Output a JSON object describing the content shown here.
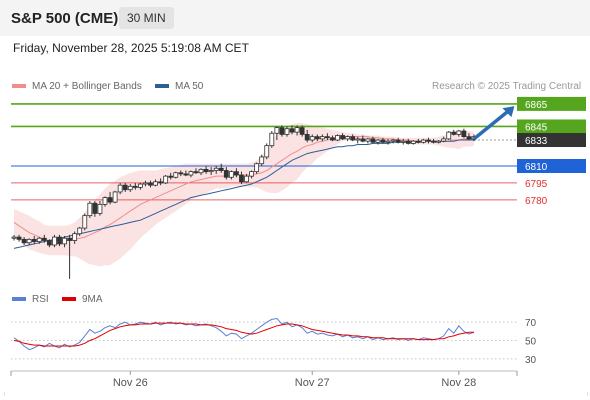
{
  "header": {
    "title": "S&P 500 (CME)",
    "timeframe": "30 MIN",
    "timestamp": "Friday, November 28, 2025 5:19:08 AM CET"
  },
  "legend": {
    "items": [
      {
        "label": "MA 20 + Bollinger Bands",
        "color": "#f08c8c"
      },
      {
        "label": "MA 50",
        "color": "#2c5e98"
      }
    ],
    "credit": "Research © 2025 Trading Central"
  },
  "rsi_legend": {
    "items": [
      {
        "label": "RSI",
        "color": "#5b7fd6"
      },
      {
        "label": "9MA",
        "color": "#e00000"
      }
    ]
  },
  "colors": {
    "resistance": "#55a61e",
    "pivot": "#1f63d6",
    "support": "#e03030",
    "last": "#333333",
    "arrow": "#2b6cb4"
  },
  "chart_data": [
    {
      "type": "line",
      "name": "price",
      "ylim": [
        6709,
        6872
      ],
      "x_ticks": [
        {
          "label": "Nov 26",
          "index": 23
        },
        {
          "label": "Nov 27",
          "index": 59
        },
        {
          "label": "Nov 28",
          "index": 88
        }
      ],
      "levels": [
        {
          "value": 6865,
          "label": "6865",
          "kind": "resistance"
        },
        {
          "value": 6845,
          "label": "6845",
          "kind": "resistance"
        },
        {
          "value": 6833,
          "label": "6833",
          "kind": "last"
        },
        {
          "value": 6810,
          "label": "6810",
          "kind": "pivot"
        },
        {
          "value": 6795,
          "label": "6795",
          "kind": "support"
        },
        {
          "value": 6780,
          "label": "6780",
          "kind": "support"
        }
      ],
      "candles": [
        [
          6746,
          6749,
          6744,
          6747
        ],
        [
          6747,
          6749,
          6743,
          6745
        ],
        [
          6745,
          6747,
          6740,
          6742
        ],
        [
          6742,
          6746,
          6740,
          6745
        ],
        [
          6745,
          6748,
          6741,
          6743
        ],
        [
          6743,
          6747,
          6741,
          6746
        ],
        [
          6746,
          6749,
          6742,
          6744
        ],
        [
          6744,
          6745,
          6738,
          6740
        ],
        [
          6740,
          6749,
          6738,
          6747
        ],
        [
          6747,
          6749,
          6739,
          6741
        ],
        [
          6741,
          6748,
          6738,
          6746
        ],
        [
          6746,
          6749,
          6710,
          6744
        ],
        [
          6744,
          6752,
          6741,
          6750
        ],
        [
          6750,
          6756,
          6748,
          6755
        ],
        [
          6755,
          6768,
          6753,
          6766
        ],
        [
          6766,
          6779,
          6764,
          6777
        ],
        [
          6777,
          6779,
          6765,
          6768
        ],
        [
          6768,
          6779,
          6766,
          6776
        ],
        [
          6776,
          6783,
          6774,
          6782
        ],
        [
          6782,
          6787,
          6776,
          6778
        ],
        [
          6778,
          6788,
          6777,
          6787
        ],
        [
          6787,
          6795,
          6785,
          6793
        ],
        [
          6793,
          6795,
          6787,
          6789
        ],
        [
          6789,
          6794,
          6787,
          6792
        ],
        [
          6792,
          6795,
          6789,
          6791
        ],
        [
          6791,
          6795,
          6789,
          6794
        ],
        [
          6794,
          6797,
          6792,
          6795
        ],
        [
          6795,
          6797,
          6791,
          6793
        ],
        [
          6793,
          6798,
          6792,
          6796
        ],
        [
          6796,
          6799,
          6793,
          6795
        ],
        [
          6795,
          6802,
          6794,
          6801
        ],
        [
          6801,
          6804,
          6798,
          6800
        ],
        [
          6800,
          6805,
          6799,
          6804
        ],
        [
          6804,
          6806,
          6801,
          6803
        ],
        [
          6803,
          6806,
          6801,
          6802
        ],
        [
          6802,
          6806,
          6800,
          6805
        ],
        [
          6805,
          6808,
          6803,
          6804
        ],
        [
          6804,
          6808,
          6802,
          6807
        ],
        [
          6807,
          6810,
          6803,
          6805
        ],
        [
          6805,
          6809,
          6802,
          6806
        ],
        [
          6806,
          6810,
          6803,
          6808
        ],
        [
          6808,
          6812,
          6804,
          6806
        ],
        [
          6806,
          6809,
          6798,
          6800
        ],
        [
          6800,
          6806,
          6798,
          6805
        ],
        [
          6805,
          6808,
          6800,
          6802
        ],
        [
          6802,
          6805,
          6794,
          6796
        ],
        [
          6796,
          6803,
          6795,
          6801
        ],
        [
          6801,
          6806,
          6799,
          6805
        ],
        [
          6805,
          6813,
          6803,
          6812
        ],
        [
          6812,
          6820,
          6810,
          6818
        ],
        [
          6818,
          6830,
          6816,
          6828
        ],
        [
          6828,
          6841,
          6826,
          6839
        ],
        [
          6839,
          6845,
          6833,
          6844
        ],
        [
          6844,
          6846,
          6836,
          6838
        ],
        [
          6838,
          6845,
          6836,
          6843
        ],
        [
          6843,
          6846,
          6838,
          6840
        ],
        [
          6840,
          6846,
          6837,
          6844
        ],
        [
          6844,
          6846,
          6836,
          6838
        ],
        [
          6838,
          6842,
          6831,
          6833
        ],
        [
          6833,
          6838,
          6831,
          6836
        ],
        [
          6836,
          6838,
          6832,
          6834
        ],
        [
          6834,
          6838,
          6832,
          6836
        ],
        [
          6836,
          6839,
          6833,
          6835
        ],
        [
          6835,
          6837,
          6832,
          6833
        ],
        [
          6833,
          6838,
          6832,
          6837
        ],
        [
          6837,
          6839,
          6833,
          6834
        ],
        [
          6834,
          6837,
          6832,
          6836
        ],
        [
          6836,
          6838,
          6832,
          6833
        ],
        [
          6833,
          6836,
          6830,
          6834
        ],
        [
          6834,
          6837,
          6831,
          6832
        ],
        [
          6832,
          6835,
          6830,
          6834
        ],
        [
          6834,
          6836,
          6830,
          6831
        ],
        [
          6831,
          6834,
          6829,
          6833
        ],
        [
          6833,
          6835,
          6830,
          6831
        ],
        [
          6831,
          6834,
          6829,
          6832
        ],
        [
          6832,
          6834,
          6830,
          6833
        ],
        [
          6833,
          6835,
          6830,
          6831
        ],
        [
          6831,
          6834,
          6829,
          6832
        ],
        [
          6832,
          6834,
          6829,
          6830
        ],
        [
          6830,
          6833,
          6829,
          6832
        ],
        [
          6832,
          6834,
          6830,
          6831
        ],
        [
          6831,
          6834,
          6830,
          6833
        ],
        [
          6833,
          6835,
          6830,
          6832
        ],
        [
          6832,
          6834,
          6830,
          6831
        ],
        [
          6831,
          6833,
          6830,
          6832
        ],
        [
          6832,
          6836,
          6831,
          6834
        ],
        [
          6834,
          6841,
          6833,
          6840
        ],
        [
          6840,
          6842,
          6837,
          6838
        ],
        [
          6838,
          6842,
          6836,
          6841
        ],
        [
          6841,
          6843,
          6835,
          6836
        ],
        [
          6836,
          6839,
          6833,
          6834
        ],
        [
          6834,
          6838,
          6832,
          6836
        ]
      ],
      "ma20": [
        6760,
        6757,
        6754,
        6751,
        6749,
        6747,
        6745,
        6744,
        6744,
        6744,
        6744,
        6744,
        6745,
        6746,
        6747,
        6749,
        6751,
        6753,
        6756,
        6758,
        6761,
        6764,
        6767,
        6770,
        6773,
        6776,
        6778,
        6780,
        6782,
        6784,
        6786,
        6788,
        6790,
        6792,
        6794,
        6796,
        6797,
        6798,
        6799,
        6800,
        6801,
        6801,
        6801,
        6802,
        6802,
        6802,
        6802,
        6802,
        6803,
        6804,
        6806,
        6809,
        6812,
        6815,
        6818,
        6821,
        6823,
        6826,
        6828,
        6829,
        6831,
        6832,
        6833,
        6834,
        6835,
        6836,
        6836,
        6836,
        6836,
        6836,
        6836,
        6835,
        6835,
        6834,
        6834,
        6834,
        6833,
        6833,
        6833,
        6832,
        6832,
        6832,
        6832,
        6832,
        6832,
        6832,
        6832,
        6833,
        6833,
        6834,
        6834,
        6834
      ],
      "bb_upper": [
        6772,
        6770,
        6768,
        6766,
        6763,
        6761,
        6758,
        6757,
        6757,
        6757,
        6757,
        6758,
        6760,
        6764,
        6769,
        6775,
        6780,
        6785,
        6790,
        6794,
        6797,
        6800,
        6802,
        6804,
        6805,
        6806,
        6806,
        6806,
        6806,
        6807,
        6808,
        6809,
        6810,
        6811,
        6812,
        6812,
        6812,
        6812,
        6812,
        6812,
        6812,
        6812,
        6812,
        6812,
        6812,
        6812,
        6812,
        6813,
        6815,
        6819,
        6825,
        6832,
        6838,
        6842,
        6845,
        6847,
        6848,
        6848,
        6847,
        6846,
        6845,
        6844,
        6843,
        6842,
        6841,
        6840,
        6839,
        6839,
        6838,
        6838,
        6837,
        6837,
        6837,
        6836,
        6836,
        6836,
        6835,
        6835,
        6835,
        6835,
        6835,
        6835,
        6835,
        6835,
        6836,
        6837,
        6838,
        6840,
        6841,
        6841,
        6841,
        6840
      ],
      "bb_lower": [
        6748,
        6744,
        6740,
        6736,
        6735,
        6733,
        6732,
        6731,
        6731,
        6731,
        6731,
        6730,
        6730,
        6728,
        6725,
        6723,
        6722,
        6721,
        6722,
        6722,
        6725,
        6728,
        6732,
        6736,
        6741,
        6746,
        6750,
        6754,
        6758,
        6761,
        6764,
        6767,
        6770,
        6773,
        6776,
        6780,
        6782,
        6784,
        6786,
        6788,
        6790,
        6790,
        6790,
        6792,
        6792,
        6792,
        6792,
        6791,
        6791,
        6789,
        6787,
        6786,
        6786,
        6788,
        6791,
        6795,
        6798,
        6804,
        6809,
        6812,
        6817,
        6820,
        6823,
        6826,
        6829,
        6832,
        6833,
        6833,
        6834,
        6834,
        6835,
        6833,
        6833,
        6832,
        6832,
        6832,
        6831,
        6831,
        6831,
        6829,
        6829,
        6829,
        6829,
        6829,
        6828,
        6827,
        6826,
        6826,
        6825,
        6827,
        6827,
        6828
      ],
      "ma50": [
        6737,
        6738,
        6739,
        6740,
        6741,
        6742,
        6743,
        6744,
        6745,
        6746,
        6747,
        6748,
        6749,
        6750,
        6751,
        6752,
        6753,
        6754,
        6755,
        6756,
        6757,
        6758,
        6759,
        6760,
        6761,
        6762,
        6764,
        6766,
        6768,
        6770,
        6772,
        6774,
        6776,
        6778,
        6780,
        6782,
        6783,
        6784,
        6785,
        6786,
        6787,
        6788,
        6789,
        6790,
        6791,
        6792,
        6793,
        6794,
        6796,
        6798,
        6800,
        6803,
        6806,
        6809,
        6812,
        6815,
        6817,
        6819,
        6821,
        6822,
        6823,
        6824,
        6825,
        6826,
        6827,
        6827,
        6828,
        6828,
        6829,
        6829,
        6829,
        6830,
        6830,
        6830,
        6830,
        6831,
        6831,
        6831,
        6831,
        6831,
        6831,
        6832,
        6832,
        6832,
        6832,
        6832,
        6832,
        6832,
        6833,
        6833,
        6833,
        6833
      ],
      "arrow": {
        "from": [
          91,
          6834
        ],
        "to": [
          99,
          6863
        ]
      }
    },
    {
      "type": "line",
      "name": "rsi",
      "ylim": [
        20,
        80
      ],
      "y_ticks": [
        70,
        50,
        30
      ],
      "series": [
        {
          "name": "RSI",
          "values": [
            53,
            49,
            44,
            40,
            42,
            45,
            43,
            47,
            44,
            42,
            46,
            43,
            45,
            48,
            55,
            62,
            58,
            60,
            64,
            66,
            64,
            68,
            70,
            67,
            68,
            70,
            69,
            68,
            70,
            67,
            69,
            70,
            68,
            69,
            67,
            68,
            66,
            67,
            68,
            66,
            64,
            60,
            55,
            58,
            57,
            52,
            55,
            58,
            62,
            66,
            70,
            73,
            74,
            68,
            70,
            65,
            67,
            64,
            58,
            60,
            57,
            58,
            56,
            55,
            57,
            54,
            56,
            53,
            54,
            52,
            54,
            51,
            53,
            51,
            52,
            53,
            51,
            52,
            50,
            52,
            51,
            53,
            52,
            51,
            52,
            55,
            63,
            58,
            66,
            60,
            57,
            59
          ]
        },
        {
          "name": "9MA",
          "values": [
            50,
            49,
            47,
            46,
            45,
            45,
            44,
            44,
            44,
            44,
            44,
            44,
            44,
            45,
            47,
            50,
            52,
            55,
            58,
            61,
            63,
            65,
            66,
            67,
            67,
            68,
            68,
            68,
            69,
            69,
            69,
            69,
            69,
            69,
            68,
            68,
            68,
            67,
            67,
            67,
            66,
            65,
            63,
            62,
            61,
            59,
            58,
            57,
            58,
            60,
            62,
            64,
            66,
            67,
            68,
            68,
            67,
            66,
            64,
            62,
            61,
            60,
            59,
            58,
            57,
            56,
            56,
            55,
            55,
            54,
            54,
            53,
            53,
            53,
            52,
            52,
            52,
            52,
            52,
            52,
            51,
            51,
            51,
            51,
            52,
            52,
            54,
            55,
            57,
            58,
            59,
            59
          ]
        }
      ]
    }
  ]
}
